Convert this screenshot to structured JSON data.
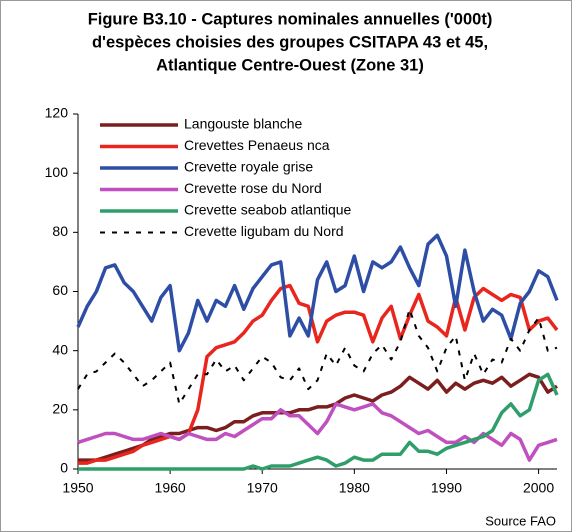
{
  "chart_data": {
    "type": "line",
    "title": [
      "Figure B3.10 - Captures nominales annuelles ('000t)",
      "d'espèces choisies des groupes CSITAPA 43 et 45,",
      "Atlantique Centre-Ouest (Zone 31)"
    ],
    "source": "Source FAO",
    "x": [
      1950,
      1951,
      1952,
      1953,
      1954,
      1955,
      1956,
      1957,
      1958,
      1959,
      1960,
      1961,
      1962,
      1963,
      1964,
      1965,
      1966,
      1967,
      1968,
      1969,
      1970,
      1971,
      1972,
      1973,
      1974,
      1975,
      1976,
      1977,
      1978,
      1979,
      1980,
      1981,
      1982,
      1983,
      1984,
      1985,
      1986,
      1987,
      1988,
      1989,
      1990,
      1991,
      1992,
      1993,
      1994,
      1995,
      1996,
      1997,
      1998,
      1999,
      2000,
      2001,
      2002
    ],
    "xlim": [
      1950,
      2002
    ],
    "xticks": [
      1950,
      1960,
      1970,
      1980,
      1990,
      2000
    ],
    "ylim": [
      0,
      120
    ],
    "yticks": [
      0,
      20,
      40,
      60,
      80,
      100,
      120
    ],
    "legend": "upper left",
    "series": [
      {
        "name": "Langouste blanche",
        "color": "#7a1e1e",
        "dash": "solid",
        "values": [
          3,
          3,
          3,
          4,
          5,
          6,
          7,
          8,
          10,
          11,
          12,
          12,
          13,
          14,
          14,
          13,
          14,
          16,
          16,
          18,
          19,
          19,
          19,
          19,
          20,
          20,
          21,
          21,
          22,
          24,
          25,
          24,
          23,
          25,
          26,
          28,
          31,
          29,
          27,
          30,
          26,
          29,
          27,
          29,
          30,
          29,
          31,
          28,
          30,
          32,
          31,
          26,
          28
        ]
      },
      {
        "name": "Crevettes Penaeus nca",
        "color": "#e8261e",
        "dash": "solid",
        "values": [
          2,
          2,
          3,
          3,
          4,
          5,
          6,
          8,
          9,
          10,
          11,
          10,
          12,
          20,
          38,
          41,
          42,
          43,
          46,
          50,
          52,
          57,
          61,
          62,
          56,
          55,
          43,
          50,
          52,
          53,
          53,
          52,
          43,
          51,
          55,
          44,
          52,
          59,
          50,
          48,
          45,
          58,
          47,
          58,
          61,
          59,
          57,
          59,
          58,
          47,
          50,
          51,
          47
        ]
      },
      {
        "name": "Crevette royale grise",
        "color": "#2e4ea6",
        "dash": "solid",
        "values": [
          48,
          55,
          60,
          68,
          69,
          63,
          60,
          55,
          50,
          58,
          62,
          40,
          46,
          57,
          50,
          57,
          55,
          62,
          54,
          61,
          65,
          69,
          70,
          45,
          51,
          45,
          64,
          70,
          60,
          62,
          72,
          60,
          70,
          68,
          70,
          75,
          68,
          62,
          76,
          79,
          72,
          55,
          74,
          60,
          50,
          54,
          52,
          44,
          56,
          60,
          67,
          65,
          57
        ]
      },
      {
        "name": "Crevette rose du Nord",
        "color": "#c04fc0",
        "dash": "solid",
        "values": [
          9,
          10,
          11,
          12,
          12,
          11,
          10,
          10,
          11,
          12,
          11,
          10,
          12,
          11,
          10,
          10,
          12,
          11,
          13,
          15,
          17,
          17,
          20,
          18,
          18,
          15,
          12,
          16,
          22,
          21,
          20,
          21,
          22,
          19,
          18,
          16,
          14,
          12,
          13,
          11,
          9,
          9,
          11,
          9,
          12,
          10,
          8,
          12,
          10,
          3,
          8,
          9,
          10
        ]
      },
      {
        "name": "Crevette seabob atlantique",
        "color": "#2f9e6b",
        "dash": "solid",
        "values": [
          0,
          0,
          0,
          0,
          0,
          0,
          0,
          0,
          0,
          0,
          0,
          0,
          0,
          0,
          0,
          0,
          0,
          0,
          0,
          1,
          0,
          1,
          1,
          1,
          2,
          3,
          4,
          3,
          1,
          2,
          4,
          3,
          3,
          5,
          5,
          5,
          9,
          6,
          6,
          5,
          7,
          8,
          9,
          10,
          11,
          13,
          19,
          22,
          18,
          20,
          30,
          32,
          25
        ]
      },
      {
        "name": "Crevette ligubam du Nord",
        "color": "#000000",
        "dash": "dashed",
        "values": [
          27,
          32,
          33,
          36,
          39,
          36,
          32,
          28,
          30,
          33,
          36,
          22,
          27,
          32,
          32,
          37,
          33,
          35,
          30,
          34,
          38,
          36,
          31,
          30,
          34,
          27,
          30,
          39,
          35,
          41,
          35,
          33,
          39,
          42,
          37,
          43,
          54,
          45,
          41,
          33,
          41,
          45,
          30,
          39,
          32,
          37,
          36,
          44,
          40,
          47,
          51,
          40,
          41
        ]
      }
    ]
  }
}
